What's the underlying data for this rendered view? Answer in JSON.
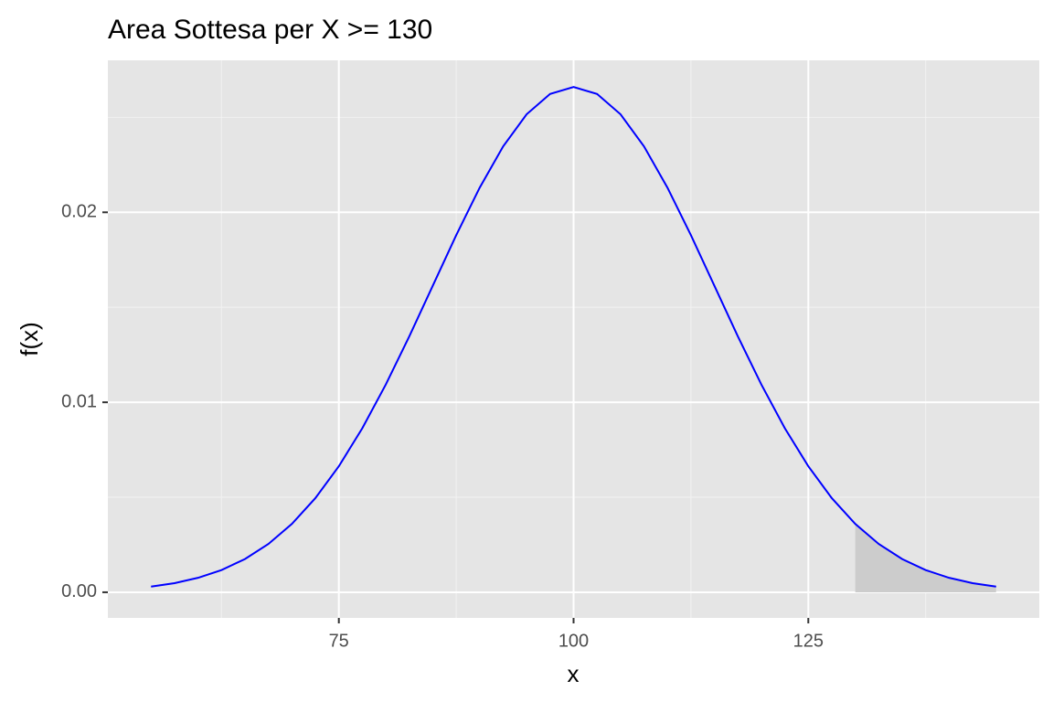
{
  "chart_data": {
    "type": "line",
    "title": "Area Sottesa per X >= 130",
    "x_label": "x",
    "y_label": "f(x)",
    "x": [
      55,
      57.5,
      60,
      62.5,
      65,
      67.5,
      70,
      72.5,
      75,
      77.5,
      80,
      82.5,
      85,
      87.5,
      90,
      92.5,
      95,
      97.5,
      100,
      102.5,
      105,
      107.5,
      110,
      112.5,
      115,
      117.5,
      120,
      122.5,
      125,
      127.5,
      130,
      132.5,
      135,
      137.5,
      140,
      142.5,
      145
    ],
    "series": [
      {
        "color": "#0000ff",
        "values": [
          0.0002955,
          0.0004804,
          0.0007597,
          0.0011686,
          0.0017481,
          0.0025435,
          0.0035994,
          0.0049537,
          0.0066318,
          0.0086345,
          0.010934,
          0.0134666,
          0.0161314,
          0.0187941,
          0.0212965,
          0.023471,
          0.0251588,
          0.0262292,
          0.0265962,
          0.0262292,
          0.0251588,
          0.023471,
          0.0212965,
          0.0187941,
          0.0161314,
          0.0134666,
          0.010934,
          0.0086345,
          0.0066318,
          0.0049537,
          0.0035994,
          0.0025435,
          0.0017481,
          0.0011686,
          0.0007597,
          0.0004804,
          0.0002955
        ]
      }
    ],
    "area": {
      "color": "#cccccc",
      "x": [
        130,
        132.5,
        135,
        137.5,
        140,
        142.5,
        145
      ],
      "values": [
        0.0035994,
        0.0025435,
        0.0017481,
        0.0011686,
        0.0007597,
        0.0004804,
        0.0002955
      ]
    },
    "xlim": [
      50.4,
      149.6
    ],
    "xticks": [
      75,
      100,
      125
    ],
    "x_minor_ticks": [
      62.5,
      87.5,
      112.5,
      137.5
    ],
    "ylim": [
      -0.00135,
      0.028
    ],
    "yticks": [
      {
        "value": 0,
        "label": "0.00"
      },
      0.01,
      0.02
    ],
    "y_minor_ticks": [
      0.005,
      0.015,
      0.025
    ],
    "grid": true
  }
}
